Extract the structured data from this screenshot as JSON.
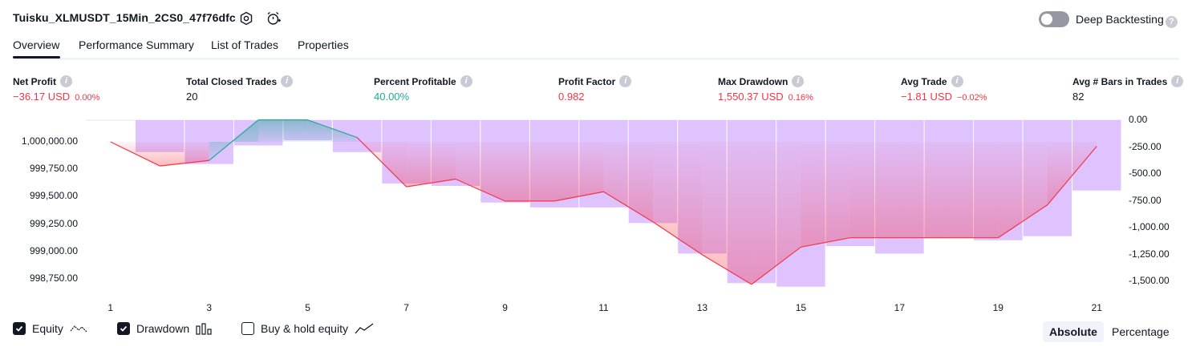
{
  "header": {
    "title": "Tuisku_XLMUSDT_15Min_2CS0_47f76dfc",
    "deep_backtesting_label": "Deep Backtesting"
  },
  "tabs": [
    {
      "label": "Overview",
      "active": true
    },
    {
      "label": "Performance Summary"
    },
    {
      "label": "List of Trades"
    },
    {
      "label": "Properties"
    }
  ],
  "metrics": [
    {
      "label": "Net Profit",
      "value": "−36.17 USD",
      "pct": "0.00%",
      "tone": "neg"
    },
    {
      "label": "Total Closed Trades",
      "value": "20",
      "pct": "",
      "tone": "plain"
    },
    {
      "label": "Percent Profitable",
      "value": "40.00%",
      "pct": "",
      "tone": "pos"
    },
    {
      "label": "Profit Factor",
      "value": "0.982",
      "pct": "",
      "tone": "neg"
    },
    {
      "label": "Max Drawdown",
      "value": "1,550.37 USD",
      "pct": "0.16%",
      "tone": "neg"
    },
    {
      "label": "Avg Trade",
      "value": "−1.81 USD",
      "pct": "−0.02%",
      "tone": "neg"
    },
    {
      "label": "Avg # Bars in Trades",
      "value": "82",
      "pct": "",
      "tone": "plain"
    }
  ],
  "legend": {
    "equity": {
      "label": "Equity",
      "checked": true
    },
    "drawdown": {
      "label": "Drawdown",
      "checked": true
    },
    "buy_hold": {
      "label": "Buy & hold equity",
      "checked": false
    }
  },
  "scale_toggle": {
    "absolute": "Absolute",
    "percentage": "Percentage",
    "selected": "Absolute"
  },
  "colors": {
    "equity_line_down": "#f23645",
    "equity_line_up": "#22ab94",
    "drawdown_bars": "#d9b8ff",
    "negative": "#f23645",
    "positive": "#22ab94"
  },
  "chart_data": {
    "type": "line",
    "x_ticks": [
      "1",
      "3",
      "5",
      "7",
      "9",
      "11",
      "13",
      "15",
      "17",
      "19",
      "21"
    ],
    "left_axis": {
      "ticks": [
        "1,000,000.00",
        "999,750.00",
        "999,500.00",
        "999,250.00",
        "999,000.00",
        "998,750.00"
      ],
      "ylim": [
        998700,
        1000200
      ]
    },
    "right_axis": {
      "ticks": [
        "0.00",
        "-250.00",
        "-500.00",
        "-750.00",
        "-1,000.00",
        "-1,250.00",
        "-1,500.00"
      ],
      "ylim": [
        -1550.37,
        0
      ]
    },
    "equity": {
      "x": [
        1,
        2,
        3,
        4,
        5,
        6,
        7,
        8,
        9,
        10,
        11,
        12,
        13,
        14,
        15,
        16,
        17,
        18,
        19,
        20,
        21
      ],
      "y": [
        1000000.0,
        999780.0,
        999830.0,
        1000200.0,
        1000200.0,
        1000040.0,
        999590.0,
        999660.0,
        999460.0,
        999460.0,
        999545.0,
        999270.0,
        998970.0,
        998700.0,
        999040.0,
        999125.0,
        999125.0,
        999125.0,
        999125.0,
        999425.0,
        999960.0
      ]
    },
    "drawdown": {
      "x": [
        1,
        2,
        3,
        4,
        5,
        6,
        7,
        8,
        9,
        10,
        11,
        12,
        13,
        14,
        15,
        16,
        17,
        18,
        19,
        20,
        21
      ],
      "y": [
        0,
        -297,
        -408,
        -235,
        -188,
        -297,
        -590,
        -612,
        -767,
        -812,
        -812,
        -958,
        -1242,
        -1517,
        -1550.37,
        -1172,
        -1242,
        -1095,
        -1118,
        -1080,
        -655
      ]
    }
  }
}
